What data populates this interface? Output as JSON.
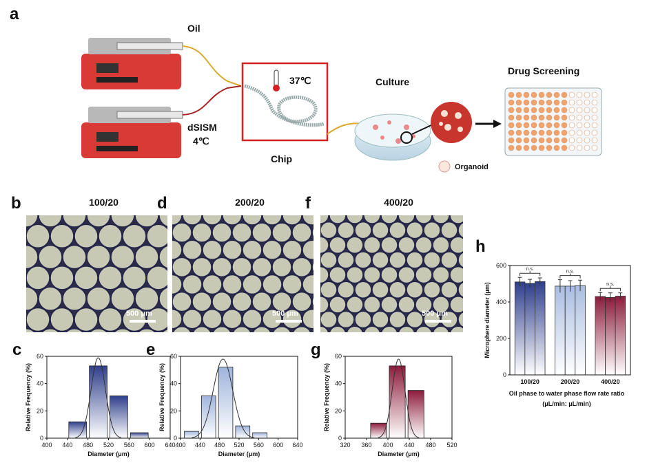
{
  "figure": {
    "a": {
      "label": "a",
      "oil": "Oil",
      "dsism": "dSISM",
      "cold": "4℃",
      "warm": "37℃",
      "chip": "Chip",
      "culture": "Culture",
      "organoid": "Organoid",
      "screening": "Drug Screening"
    },
    "micrographs": [
      {
        "label": "b",
        "title": "100/20",
        "scale_bar": "500 μm"
      },
      {
        "label": "d",
        "title": "200/20",
        "scale_bar": "500 μm"
      },
      {
        "label": "f",
        "title": "400/20",
        "scale_bar": "500 μm"
      }
    ]
  },
  "chart_data": [
    {
      "type": "histogram",
      "label": "c",
      "bins": [
        440,
        480,
        520,
        560,
        600
      ],
      "values": [
        12,
        53,
        31,
        4
      ],
      "color": "#2f3f8c",
      "xlim": [
        400,
        640
      ],
      "xticks": [
        400,
        440,
        480,
        520,
        560,
        600,
        640
      ],
      "ylim": [
        0,
        60
      ],
      "yticks": [
        0,
        20,
        40,
        60
      ],
      "xlabel": "Diameter (μm)",
      "ylabel": "Relative Frequency (%)",
      "fit": {
        "mean": 500,
        "sd": 14,
        "peak": 59
      }
    },
    {
      "type": "histogram",
      "label": "e",
      "bins": [
        405,
        440,
        475,
        510,
        545,
        580
      ],
      "values": [
        5,
        31,
        52,
        9,
        4
      ],
      "color": "#9fb4dc",
      "xlim": [
        400,
        640
      ],
      "xticks": [
        400,
        440,
        480,
        520,
        560,
        600,
        640
      ],
      "ylim": [
        0,
        60
      ],
      "yticks": [
        0,
        20,
        40,
        60
      ],
      "xlabel": "Diameter (μm)",
      "ylabel": "Relative Frequency (%)",
      "fit": {
        "mean": 487,
        "sd": 20,
        "peak": 58
      }
    },
    {
      "type": "histogram",
      "label": "g",
      "bins": [
        365,
        400,
        435,
        470
      ],
      "values": [
        11,
        53,
        35
      ],
      "color": "#8c1c3c",
      "xlim": [
        320,
        520
      ],
      "xticks": [
        320,
        360,
        400,
        440,
        480,
        520
      ],
      "ylim": [
        0,
        60
      ],
      "yticks": [
        0,
        20,
        40,
        60
      ],
      "xlabel": "Diameter (μm)",
      "ylabel": "Relative Frequency (%)",
      "fit": {
        "mean": 420,
        "sd": 12,
        "peak": 58
      }
    },
    {
      "type": "bar",
      "label": "h",
      "categories": [
        "100/20",
        "200/20",
        "400/20"
      ],
      "groups": [
        {
          "values": [
            510,
            502,
            512
          ],
          "errors": [
            25,
            22,
            20
          ],
          "color": "#2f3f8c",
          "annotation": "n.s."
        },
        {
          "values": [
            487,
            487,
            490
          ],
          "errors": [
            35,
            30,
            30
          ],
          "color": "#a9bde0",
          "annotation": "n.s."
        },
        {
          "values": [
            430,
            425,
            432
          ],
          "errors": [
            22,
            25,
            18
          ],
          "color": "#8c1c3c",
          "annotation": "n.s."
        }
      ],
      "ylim": [
        0,
        600
      ],
      "yticks": [
        0,
        200,
        400,
        600
      ],
      "ylabel": "Microphere diameter (μm)",
      "xlabel": [
        "Oil phase to water phase flow rate ratio",
        "(μL/min: μL/min)"
      ]
    }
  ]
}
